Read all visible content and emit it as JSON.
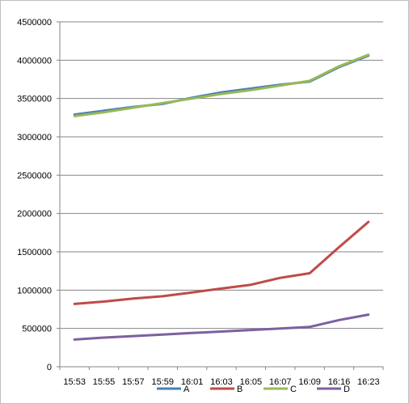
{
  "chart_data": {
    "type": "line",
    "title": "",
    "xlabel": "",
    "ylabel": "",
    "categories": [
      "15:53",
      "15:55",
      "15:57",
      "15:59",
      "16:01",
      "16:03",
      "16:05",
      "16:07",
      "16:09",
      "16:16",
      "16:23"
    ],
    "ylim": [
      0,
      4500000
    ],
    "yticks": [
      0,
      500000,
      1000000,
      1500000,
      2000000,
      2500000,
      3000000,
      3500000,
      4000000,
      4500000
    ],
    "ytick_labels": [
      "0",
      "500000",
      "1000000",
      "1500000",
      "2000000",
      "2500000",
      "3000000",
      "3500000",
      "4000000",
      "4500000"
    ],
    "grid": "horizontal",
    "legend_position": "bottom",
    "series": [
      {
        "name": "A",
        "color": "#4a7ebb",
        "values": [
          3290000,
          3340000,
          3390000,
          3430000,
          3510000,
          3580000,
          3630000,
          3680000,
          3720000,
          3910000,
          4060000
        ]
      },
      {
        "name": "B",
        "color": "#be4b48",
        "values": [
          820000,
          850000,
          890000,
          920000,
          970000,
          1020000,
          1070000,
          1160000,
          1220000,
          1560000,
          1890000
        ]
      },
      {
        "name": "C",
        "color": "#98b954",
        "values": [
          3270000,
          3320000,
          3380000,
          3440000,
          3500000,
          3560000,
          3610000,
          3670000,
          3730000,
          3920000,
          4070000
        ]
      },
      {
        "name": "D",
        "color": "#7d60a0",
        "values": [
          355000,
          380000,
          400000,
          420000,
          440000,
          460000,
          480000,
          500000,
          520000,
          610000,
          680000
        ]
      }
    ]
  }
}
